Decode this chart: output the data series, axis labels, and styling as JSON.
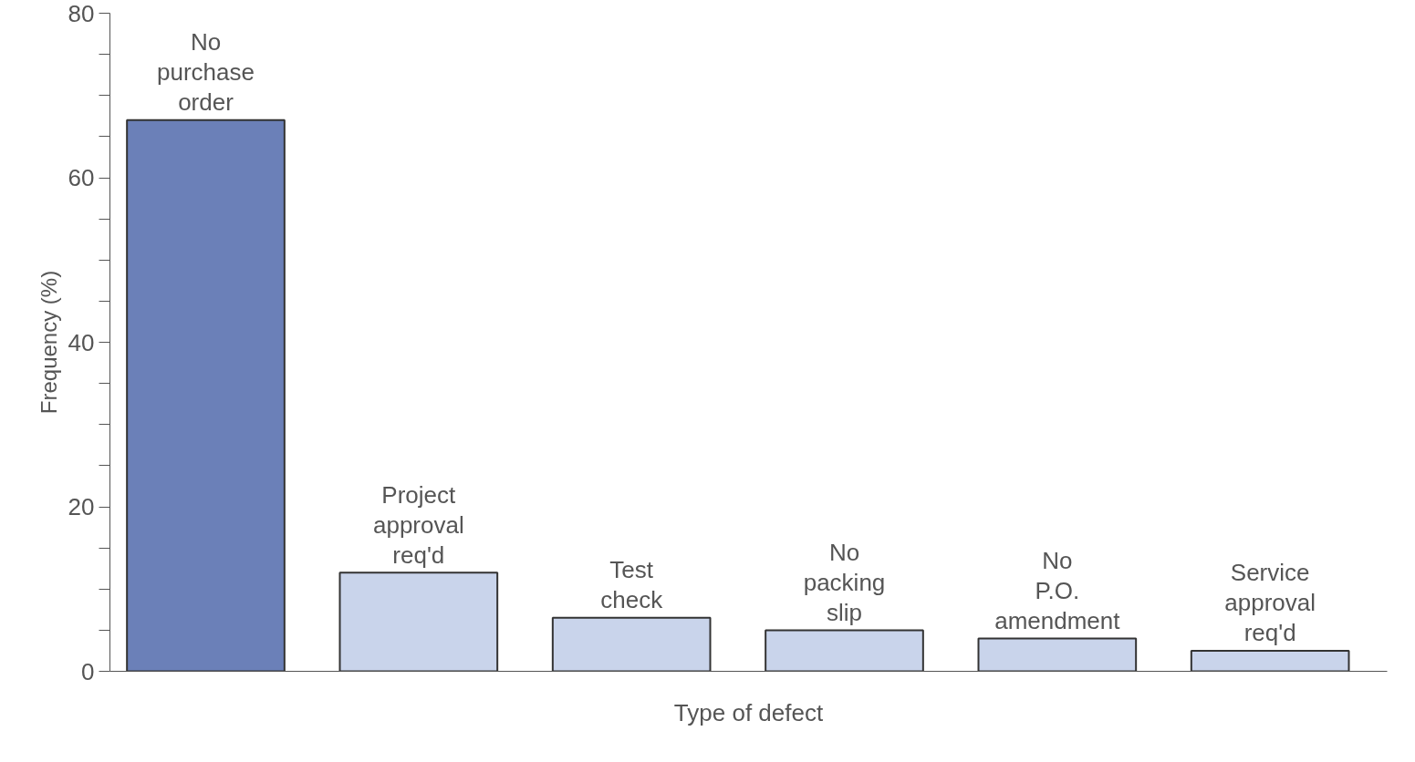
{
  "chart_data": {
    "type": "bar",
    "xlabel": "Type of defect",
    "ylabel": "Frequency (%)",
    "categories": [
      "No\npurchase\norder",
      "Project\napproval\nreq'd",
      "Test\ncheck",
      "No\npacking\nslip",
      "No\nP.O.\namendment",
      "Service\napproval\nreq'd"
    ],
    "values": [
      67,
      12,
      6.5,
      5,
      4,
      2.5
    ],
    "colors": [
      "#6b80b8",
      "#c9d4eb",
      "#c9d4eb",
      "#c9d4eb",
      "#c9d4eb",
      "#c9d4eb"
    ],
    "ylim": [
      0,
      80
    ],
    "yticks": [
      0,
      {
        "value": 5,
        "label": null
      },
      {
        "value": 10,
        "label": null
      },
      {
        "value": 15,
        "label": null
      },
      20,
      {
        "value": 25,
        "label": null
      },
      {
        "value": 30,
        "label": null
      },
      {
        "value": 35,
        "label": null
      },
      40,
      {
        "value": 45,
        "label": null
      },
      {
        "value": 50,
        "label": null
      },
      {
        "value": 55,
        "label": null
      },
      60,
      {
        "value": 65,
        "label": null
      },
      {
        "value": 70,
        "label": null
      },
      {
        "value": 75,
        "label": null
      },
      80
    ],
    "grid": false
  }
}
